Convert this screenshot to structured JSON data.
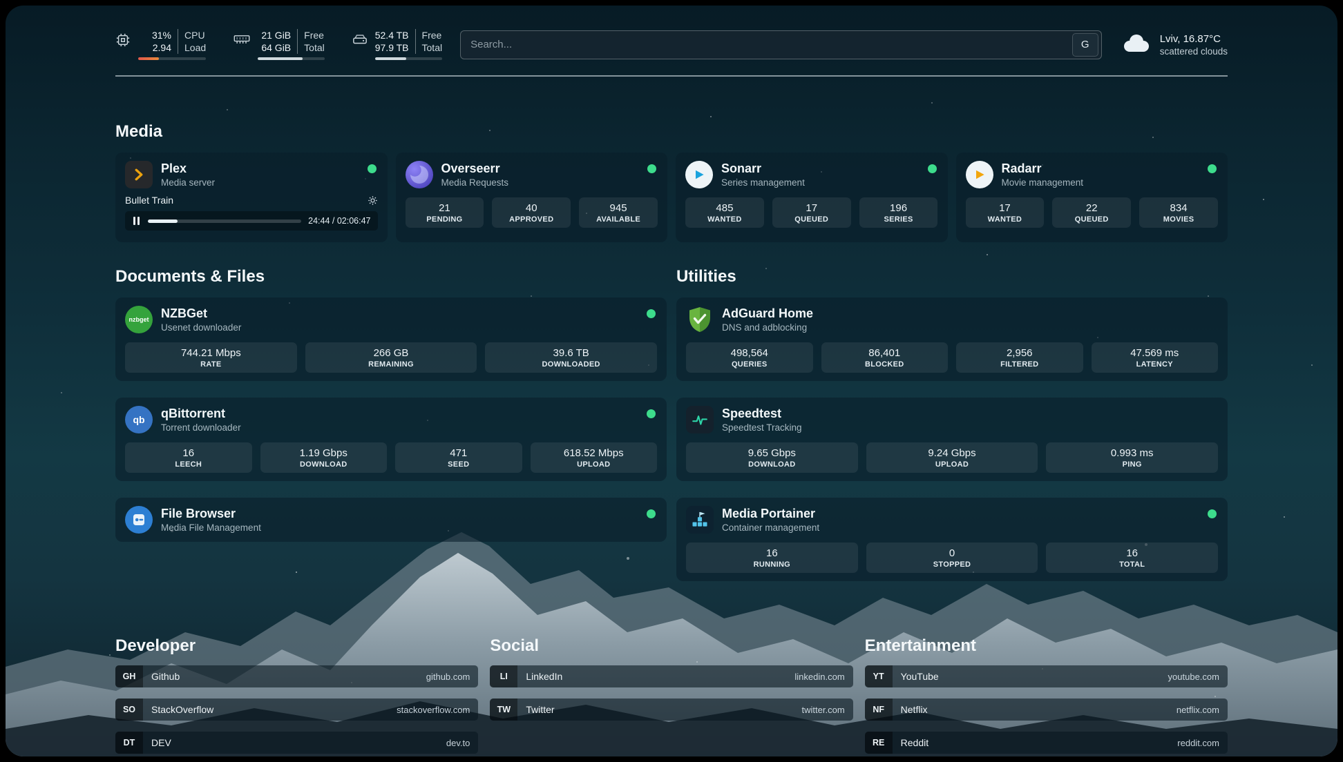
{
  "header": {
    "cpu": {
      "value_top": "31%",
      "value_bottom": "2.94",
      "label_top": "CPU",
      "label_bottom": "Load",
      "usage_percent": 31
    },
    "memory": {
      "value_top": "21 GiB",
      "value_bottom": "64 GiB",
      "label_top": "Free",
      "label_bottom": "Total",
      "usage_percent": 67
    },
    "disk": {
      "value_top": "52.4 TB",
      "value_bottom": "97.9 TB",
      "label_top": "Free",
      "label_bottom": "Total",
      "usage_percent": 47
    },
    "search": {
      "placeholder": "Search...",
      "button_label": "G"
    },
    "weather": {
      "location": "Lviv, 16.87°C",
      "condition": "scattered clouds"
    }
  },
  "media": {
    "title": "Media",
    "plex": {
      "name": "Plex",
      "subtitle": "Media server",
      "now_playing": "Bullet Train",
      "time": "24:44 / 02:06:47",
      "progress_percent": 19.5
    },
    "overseerr": {
      "name": "Overseerr",
      "subtitle": "Media Requests",
      "stats": [
        {
          "value": "21",
          "label": "PENDING"
        },
        {
          "value": "40",
          "label": "APPROVED"
        },
        {
          "value": "945",
          "label": "AVAILABLE"
        }
      ]
    },
    "sonarr": {
      "name": "Sonarr",
      "subtitle": "Series management",
      "stats": [
        {
          "value": "485",
          "label": "WANTED"
        },
        {
          "value": "17",
          "label": "QUEUED"
        },
        {
          "value": "196",
          "label": "SERIES"
        }
      ]
    },
    "radarr": {
      "name": "Radarr",
      "subtitle": "Movie management",
      "stats": [
        {
          "value": "17",
          "label": "WANTED"
        },
        {
          "value": "22",
          "label": "QUEUED"
        },
        {
          "value": "834",
          "label": "MOVIES"
        }
      ]
    }
  },
  "documents": {
    "title": "Documents & Files",
    "nzbget": {
      "name": "NZBGet",
      "subtitle": "Usenet downloader",
      "icon_text": "nzbget",
      "stats": [
        {
          "value": "744.21 Mbps",
          "label": "RATE"
        },
        {
          "value": "266 GB",
          "label": "REMAINING"
        },
        {
          "value": "39.6 TB",
          "label": "DOWNLOADED"
        }
      ]
    },
    "qbittorrent": {
      "name": "qBittorrent",
      "subtitle": "Torrent downloader",
      "icon_text": "qb",
      "stats": [
        {
          "value": "16",
          "label": "LEECH"
        },
        {
          "value": "1.19 Gbps",
          "label": "DOWNLOAD"
        },
        {
          "value": "471",
          "label": "SEED"
        },
        {
          "value": "618.52 Mbps",
          "label": "UPLOAD"
        }
      ]
    },
    "filebrowser": {
      "name": "File Browser",
      "subtitle": "Media File Management"
    }
  },
  "utilities": {
    "title": "Utilities",
    "adguard": {
      "name": "AdGuard Home",
      "subtitle": "DNS and adblocking",
      "stats": [
        {
          "value": "498,564",
          "label": "QUERIES"
        },
        {
          "value": "86,401",
          "label": "BLOCKED"
        },
        {
          "value": "2,956",
          "label": "FILTERED"
        },
        {
          "value": "47.569 ms",
          "label": "LATENCY"
        }
      ]
    },
    "speedtest": {
      "name": "Speedtest",
      "subtitle": "Speedtest Tracking",
      "stats": [
        {
          "value": "9.65 Gbps",
          "label": "DOWNLOAD"
        },
        {
          "value": "9.24 Gbps",
          "label": "UPLOAD"
        },
        {
          "value": "0.993 ms",
          "label": "PING"
        }
      ]
    },
    "portainer": {
      "name": "Media Portainer",
      "subtitle": "Container management",
      "stats": [
        {
          "value": "16",
          "label": "RUNNING"
        },
        {
          "value": "0",
          "label": "STOPPED"
        },
        {
          "value": "16",
          "label": "TOTAL"
        }
      ]
    }
  },
  "bookmarks": [
    {
      "title": "Developer",
      "items": [
        {
          "abbr": "GH",
          "name": "Github",
          "url": "github.com"
        },
        {
          "abbr": "SO",
          "name": "StackOverflow",
          "url": "stackoverflow.com"
        },
        {
          "abbr": "DT",
          "name": "DEV",
          "url": "dev.to"
        }
      ]
    },
    {
      "title": "Social",
      "items": [
        {
          "abbr": "LI",
          "name": "LinkedIn",
          "url": "linkedin.com"
        },
        {
          "abbr": "TW",
          "name": "Twitter",
          "url": "twitter.com"
        }
      ]
    },
    {
      "title": "Entertainment",
      "items": [
        {
          "abbr": "YT",
          "name": "YouTube",
          "url": "youtube.com"
        },
        {
          "abbr": "NF",
          "name": "Netflix",
          "url": "netflix.com"
        },
        {
          "abbr": "RE",
          "name": "Reddit",
          "url": "reddit.com"
        }
      ]
    }
  ],
  "colors": {
    "status_online": "#3ddc8c",
    "plex_amber": "#eba10e"
  }
}
